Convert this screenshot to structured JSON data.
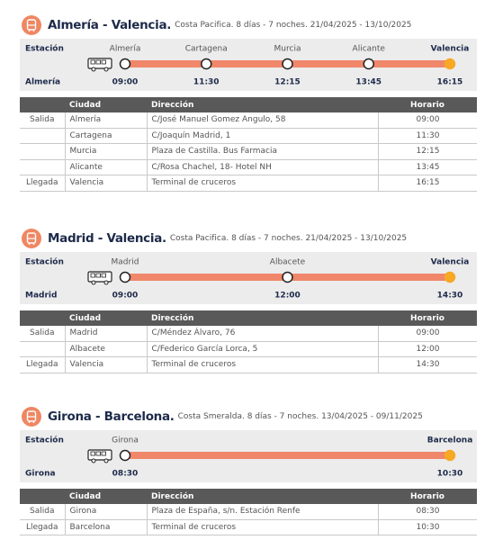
{
  "sections": [
    {
      "title": "Almería - Valencia.",
      "subtitle": "Costa Pacifica. 8 días - 7 noches. 21/04/2025 - 13/10/2025",
      "station_label": "Estación",
      "origin_label": "Almería",
      "stops": [
        {
          "name": "Almería",
          "time": "09:00"
        },
        {
          "name": "Cartagena",
          "time": "11:30"
        },
        {
          "name": "Murcia",
          "time": "12:15"
        },
        {
          "name": "Alicante",
          "time": "13:45"
        },
        {
          "name": "Valencia",
          "time": "16:15"
        }
      ],
      "table": {
        "headers": [
          "Ciudad",
          "Dirección",
          "Horario"
        ],
        "rows": [
          {
            "type": "Salida",
            "city": "Almería",
            "address": "C/José Manuel Gomez Angulo, 58",
            "time": "09:00"
          },
          {
            "city": "Cartagena",
            "address": "C/Joaquín Madrid, 1",
            "time": "11:30"
          },
          {
            "city": "Murcia",
            "address": "Plaza de Castilla. Bus Farmacia",
            "time": "12:15"
          },
          {
            "city": "Alicante",
            "address": "C/Rosa Chachel, 18- Hotel NH",
            "time": "13:45"
          },
          {
            "type": "Llegada",
            "city": "Valencia",
            "address": "Terminal de cruceros",
            "time": "16:15"
          }
        ]
      }
    },
    {
      "title": "Madrid - Valencia.",
      "subtitle": "Costa Pacifica. 8 días - 7 noches. 21/04/2025 - 13/10/2025",
      "station_label": "Estación",
      "origin_label": "Madrid",
      "stops": [
        {
          "name": "Madrid",
          "time": "09:00"
        },
        {
          "name": "Albacete",
          "time": "12:00"
        },
        {
          "name": "Valencia",
          "time": "14:30"
        }
      ],
      "table": {
        "headers": [
          "Ciudad",
          "Dirección",
          "Horario"
        ],
        "rows": [
          {
            "type": "Salida",
            "city": "Madrid",
            "address": "C/Méndez Álvaro, 76",
            "time": "09:00"
          },
          {
            "city": "Albacete",
            "address": "C/Federico García Lorca, 5",
            "time": "12:00"
          },
          {
            "type": "Llegada",
            "city": "Valencia",
            "address": "Terminal de cruceros",
            "time": "14:30"
          }
        ]
      }
    },
    {
      "title": "Girona - Barcelona.",
      "subtitle": "Costa Smeralda. 8 días - 7 noches. 13/04/2025 - 09/11/2025",
      "station_label": "Estación",
      "origin_label": "Girona",
      "stops": [
        {
          "name": "Girona",
          "time": "08:30"
        },
        {
          "name": "Barcelona",
          "time": "10:30"
        }
      ],
      "table": {
        "headers": [
          "Ciudad",
          "Dirección",
          "Horario"
        ],
        "rows": [
          {
            "type": "Salida",
            "city": "Girona",
            "address": "Plaza de España, s/n. Estación Renfe",
            "time": "08:30"
          },
          {
            "type": "Llegada",
            "city": "Barcelona",
            "address": "Terminal de cruceros",
            "time": "10:30"
          }
        ]
      }
    }
  ]
}
